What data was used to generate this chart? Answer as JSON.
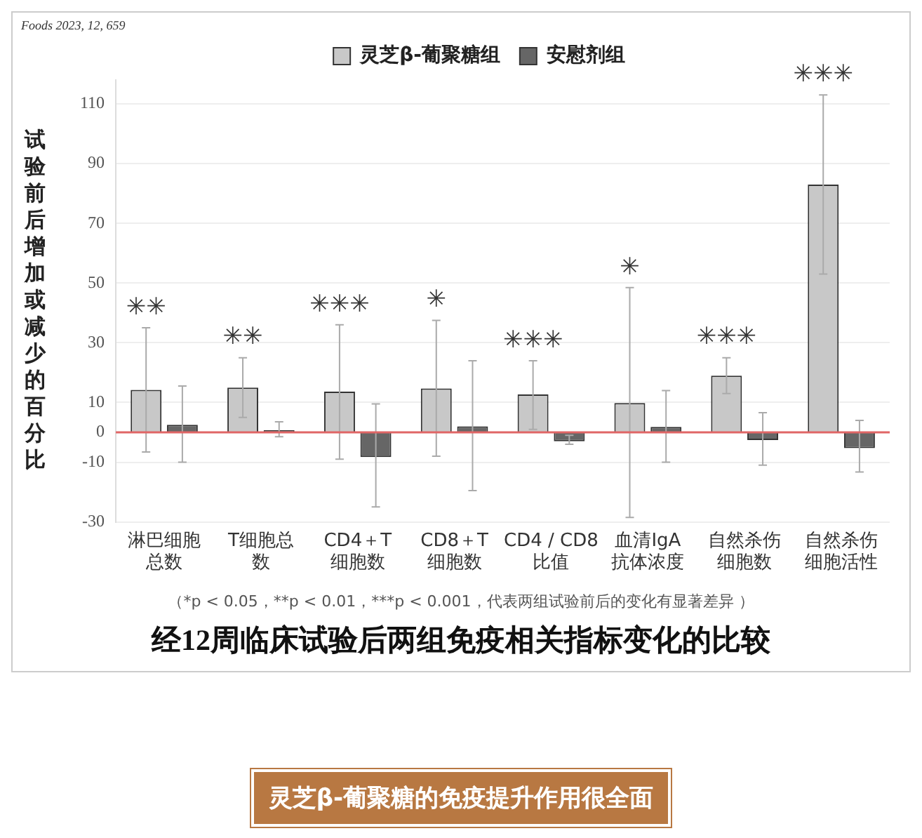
{
  "chart_data": {
    "type": "bar",
    "title": "经12周临床试验后两组免疫相关指标变化的比较",
    "ylabel": "试验前后增加或减少的百分比",
    "categories": [
      "淋巴细胞总数",
      "T细胞总数",
      "CD4＋T细胞数",
      "CD8＋T细胞数",
      "CD4 / CD8比值",
      "血清IgA抗体浓度",
      "自然杀伤细胞数",
      "自然杀伤细胞活性"
    ],
    "series": [
      {
        "name": "灵芝β-葡聚糖组",
        "color": "#c8c8c8",
        "values": [
          14.2,
          15,
          13.6,
          14.7,
          12.7,
          9.8,
          19,
          83
        ],
        "errors": [
          [
            -6.6,
            35
          ],
          [
            5,
            25
          ],
          [
            -9,
            36
          ],
          [
            -8,
            37.5
          ],
          [
            1,
            24
          ],
          [
            -28.5,
            48.5
          ],
          [
            13,
            25
          ],
          [
            53,
            113
          ]
        ]
      },
      {
        "name": "安慰剂组",
        "color": "#666666",
        "values": [
          2.5,
          0.7,
          -8.3,
          2,
          -3,
          1.8,
          -2.6,
          -5.3
        ],
        "errors": [
          [
            -10,
            15.5
          ],
          [
            -1.5,
            3.5
          ],
          [
            -25,
            9.5
          ],
          [
            -19.5,
            24
          ],
          [
            -4,
            -1
          ],
          [
            -10,
            14
          ],
          [
            -11,
            6.6
          ],
          [
            -13.3,
            4
          ]
        ]
      }
    ],
    "ylim": [
      -30,
      118
    ],
    "yticks": [
      -30,
      -10,
      0,
      10,
      30,
      50,
      70,
      90,
      110
    ],
    "grid": "y",
    "legend": "top",
    "ref_lines": [
      {
        "axis": "y",
        "value": 0,
        "color": "#e06666"
      }
    ],
    "annotations": [
      "Foods 2023, 12, 659",
      "✳✳",
      "✳✳",
      "✳✳✳",
      "✳",
      "✳✳✳",
      "✳",
      "✳✳✳",
      "✳✳✳",
      "（*p < 0.05，**p <  0.01，***p < 0.001，代表两组试验前后的变化有显著差异 ）",
      "灵芝β-葡聚糖的免疫提升作用很全面"
    ]
  }
}
